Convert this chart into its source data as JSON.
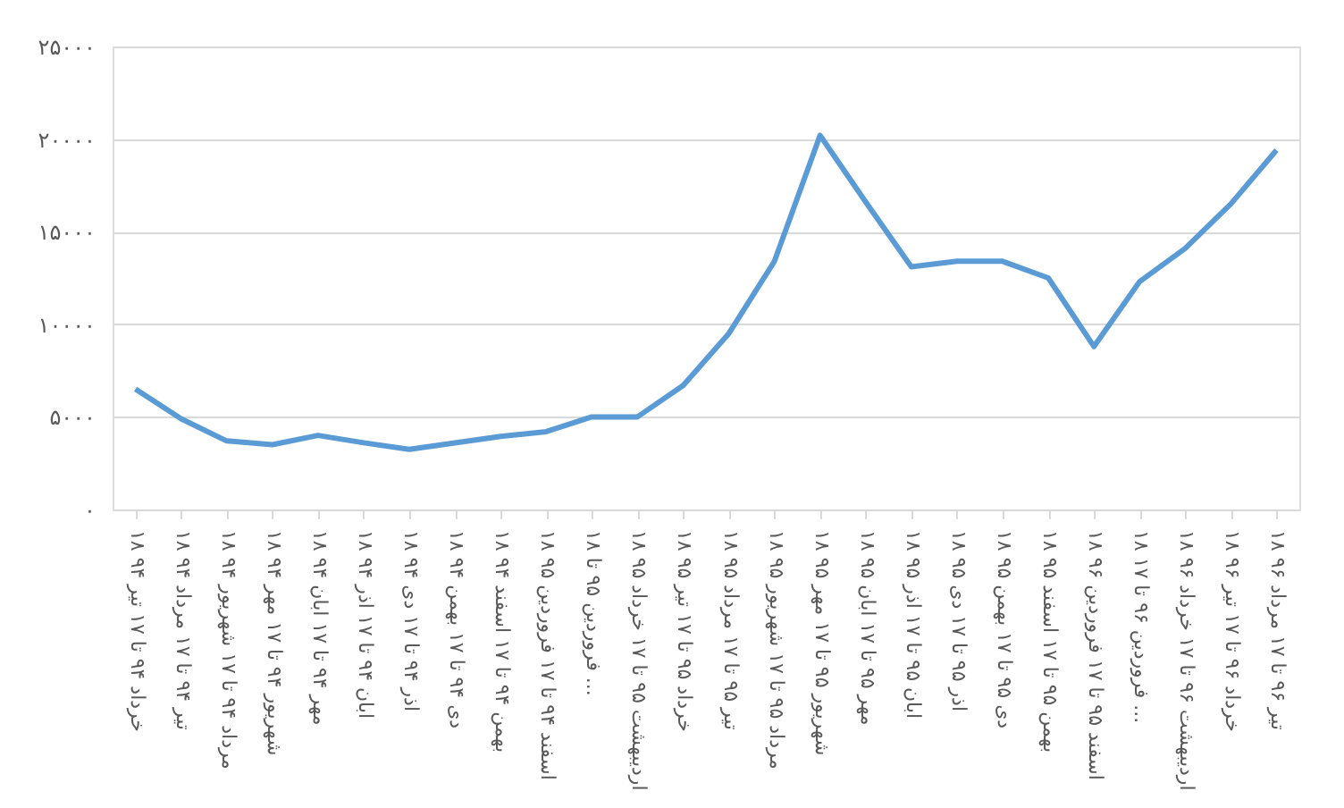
{
  "chart_data": {
    "type": "line",
    "categories": [
      "۱۸ خرداد ۹۴ تا ۱۷ تیر ۹۴",
      "۱۸ تیر ۹۴ تا ۱۷ مرداد ۹۴",
      "۱۸ مرداد ۹۴ تا ۱۷ شهریور ۹۴",
      "۱۸ شهریور ۹۴ تا ۱۷ مهر ۹۴",
      "۱۸ مهر ۹۴ تا ۱۷ ابان ۹۴",
      "۱۸ ابان ۹۴ تا ۱۷ اذر ۹۴",
      "۱۸ اذر ۹۴ تا ۱۷ دی ۹۴",
      "۱۸ دی ۹۴ تا ۱۷ بهمن ۹۴",
      "۱۸ بهمن ۹۴ تا ۱۷ اسفند ۹۴",
      "۱۸ اسفند ۹۴ تا ۱۷ فروردین ۹۵",
      "۱۸ فروردین ۹۵ تا ...",
      "۱۸ اردیبهشت ۹۵ تا ۱۷ خرداد ۹۵",
      "۱۸ خرداد ۹۵ تا ۱۷ تیر ۹۵",
      "۱۸ تیر ۹۵ تا ۱۷ مرداد ۹۵",
      "۱۸ مرداد ۹۵ تا ۱۷ شهریور ۹۵",
      "۱۸ شهریور ۹۵ تا ۱۷ مهر ۹۵",
      "۱۸ مهر ۹۵ تا ۱۷ ابان ۹۵",
      "۱۸ ابان ۹۵ تا ۱۷ اذر ۹۵",
      "۱۸ اذر ۹۵ تا ۱۷ دی ۹۵",
      "۱۸ دی ۹۵ تا ۱۷ بهمن ۹۵",
      "۱۸ بهمن ۹۵ تا ۱۷ اسفند ۹۵",
      "۱۸ اسفند ۹۵ تا ۱۷ فروردین ۹۶",
      "۱۸ فروردین ۹۶ تا ۱۷ ...",
      "۱۸ اردیبهشت ۹۶ تا ۱۷ خرداد ۹۶",
      "۱۸ خرداد ۹۶ تا ۱۷ تیر ۹۶",
      "۱۸ تیر ۹۶ تا ۱۷ مرداد ۹۶"
    ],
    "series": [
      {
        "color": "#5b9bd5",
        "values": [
          6500,
          4900,
          3700,
          3500,
          4000,
          3600,
          3250,
          3600,
          3950,
          4200,
          5000,
          5000,
          6700,
          9500,
          13400,
          20200,
          16600,
          13100,
          13400,
          13400,
          12500,
          8800,
          12300,
          14100,
          16500,
          19400
        ]
      }
    ],
    "ylim": [
      0,
      25000
    ],
    "yticks": [
      {
        "value": 0,
        "label": "۰"
      },
      {
        "value": 5000,
        "label": "۵۰۰۰"
      },
      {
        "value": 10000,
        "label": "۱۰۰۰۰"
      },
      {
        "value": 15000,
        "label": "۱۵۰۰۰"
      },
      {
        "value": 20000,
        "label": "۲۰۰۰۰"
      },
      {
        "value": 25000,
        "label": "۲۵۰۰۰"
      }
    ],
    "grid": "y",
    "marker": "none",
    "line_style": "solid",
    "legend": false
  }
}
